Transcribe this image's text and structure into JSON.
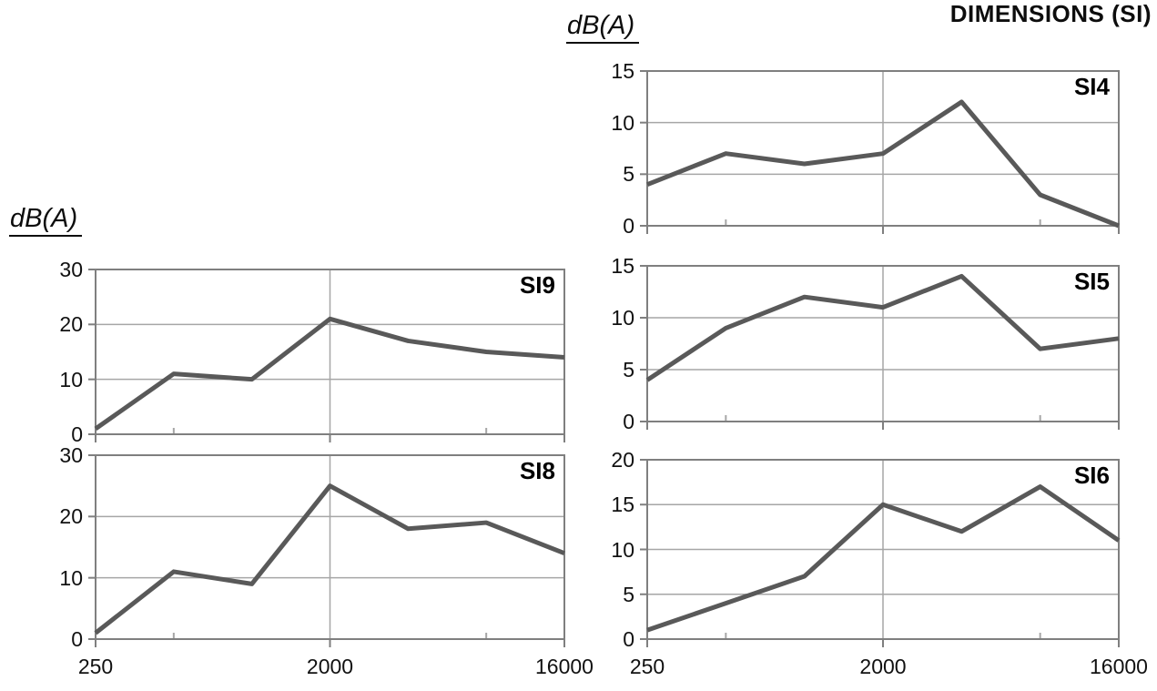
{
  "title": "DIMENSIONS (SI)",
  "y_axis_label_left": "dB(A)",
  "y_axis_label_right": "dB(A)",
  "colors": {
    "line": "#595959",
    "gridline": "#a6a6a6",
    "border": "#7f7f7f",
    "text": "#111111"
  },
  "x_tick_labels": [
    "250",
    "2000",
    "16000"
  ],
  "chart_data": [
    {
      "id": "SI9",
      "type": "line",
      "label": "SI9",
      "x": [
        250,
        500,
        1000,
        2000,
        4000,
        8000,
        16000
      ],
      "values": [
        1,
        11,
        10,
        21,
        17,
        15,
        14
      ],
      "ylim": [
        0,
        30
      ],
      "ytick_step": 10,
      "ylabel": "dB(A)",
      "v_gridline_x": 2000,
      "legend": "none"
    },
    {
      "id": "SI8",
      "type": "line",
      "label": "SI8",
      "x": [
        250,
        500,
        1000,
        2000,
        4000,
        8000,
        16000
      ],
      "values": [
        1,
        11,
        9,
        25,
        18,
        19,
        14
      ],
      "ylim": [
        0,
        30
      ],
      "ytick_step": 10,
      "ylabel": "dB(A)",
      "v_gridline_x": 2000,
      "legend": "none"
    },
    {
      "id": "SI4",
      "type": "line",
      "label": "SI4",
      "x": [
        250,
        500,
        1000,
        2000,
        4000,
        8000,
        16000
      ],
      "values": [
        4,
        7,
        6,
        7,
        12,
        3,
        0
      ],
      "ylim": [
        0,
        15
      ],
      "ytick_step": 5,
      "ylabel": "dB(A)",
      "v_gridline_x": 2000,
      "legend": "none"
    },
    {
      "id": "SI5",
      "type": "line",
      "label": "SI5",
      "x": [
        250,
        500,
        1000,
        2000,
        4000,
        8000,
        16000
      ],
      "values": [
        4,
        9,
        12,
        11,
        14,
        7,
        8
      ],
      "ylim": [
        0,
        15
      ],
      "ytick_step": 5,
      "ylabel": "dB(A)",
      "v_gridline_x": 2000,
      "legend": "none"
    },
    {
      "id": "SI6",
      "type": "line",
      "label": "SI6",
      "x": [
        250,
        500,
        1000,
        2000,
        4000,
        8000,
        16000
      ],
      "values": [
        1,
        4,
        7,
        15,
        12,
        17,
        11
      ],
      "ylim": [
        0,
        20
      ],
      "ytick_step": 5,
      "ylabel": "dB(A)",
      "v_gridline_x": 2000,
      "legend": "none"
    }
  ]
}
